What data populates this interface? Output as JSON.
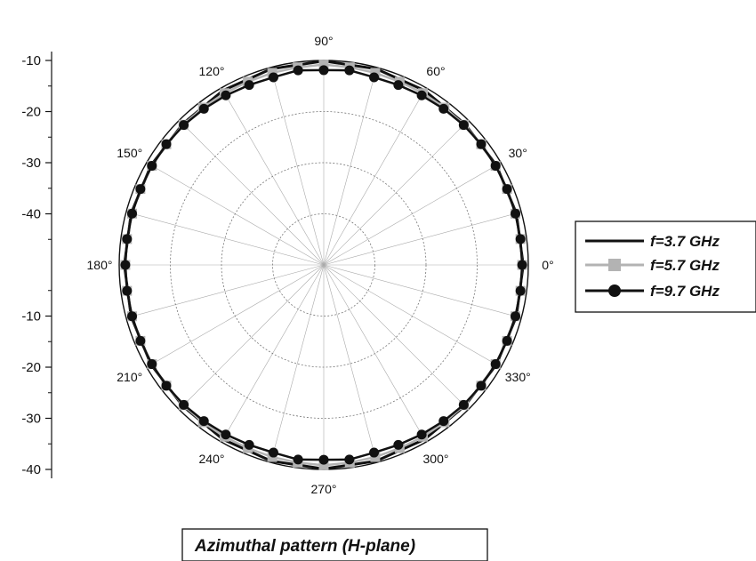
{
  "chart_data": {
    "type": "polar-line",
    "caption": "Azimuthal pattern (H-plane)",
    "radial_axis": {
      "tick_labels_upper": [
        "-10",
        "-20",
        "-30",
        "-40"
      ],
      "tick_labels_lower": [
        "-40",
        "-30",
        "-20",
        "-10"
      ],
      "range": [
        -50,
        -10
      ],
      "grid": "dotted rings"
    },
    "angular_axis": {
      "unit": "degrees",
      "tick_labels": [
        "0°",
        "30°",
        "60°",
        "90°",
        "120°",
        "150°",
        "180°",
        "210°",
        "240°",
        "270°",
        "300°",
        "330°"
      ],
      "spoke_step_deg": 15
    },
    "legend": {
      "placement": "right",
      "entries": [
        "f=3.7 GHz",
        "f=5.7 GHz",
        "f=9.7 GHz"
      ]
    },
    "series": [
      {
        "name": "f=3.7 GHz",
        "color": "#111111",
        "marker": "none",
        "theta_deg": [
          0,
          15,
          30,
          45,
          60,
          75,
          90,
          105,
          120,
          135,
          150,
          165,
          180,
          195,
          210,
          225,
          240,
          255,
          270,
          285,
          300,
          315,
          330,
          345
        ],
        "r": [
          -11,
          -11,
          -11,
          -11,
          -10.6,
          -10.3,
          -10.1,
          -10.3,
          -10.6,
          -11,
          -11,
          -11,
          -11,
          -11,
          -11,
          -11,
          -10.6,
          -10.3,
          -10.1,
          -10.3,
          -10.6,
          -11,
          -11,
          -11
        ]
      },
      {
        "name": "f=5.7 GHz",
        "color": "#b3b3b3",
        "marker": "square",
        "theta_deg": [
          0,
          7.5,
          15,
          22.5,
          30,
          37.5,
          45,
          52.5,
          60,
          67.5,
          75,
          82.5,
          90,
          97.5,
          105,
          112.5,
          120,
          127.5,
          135,
          142.5,
          150,
          157.5,
          165,
          172.5,
          180,
          187.5,
          195,
          202.5,
          210,
          217.5,
          225,
          232.5,
          240,
          247.5,
          255,
          262.5,
          270,
          277.5,
          285,
          292.5,
          300,
          307.5,
          315,
          322.5,
          330,
          337.5,
          345,
          352.5
        ],
        "r": [
          -11.2,
          -11.2,
          -11.2,
          -11.2,
          -11.2,
          -11.2,
          -11.2,
          -11.2,
          -11.2,
          -11.2,
          -11.1,
          -11,
          -10.8,
          -11,
          -11.1,
          -11.2,
          -11.2,
          -11.2,
          -11.2,
          -11.2,
          -11.2,
          -11.2,
          -11.2,
          -11.2,
          -11.2,
          -11.2,
          -11.2,
          -11.2,
          -11.2,
          -11.2,
          -11.2,
          -11.2,
          -11.2,
          -11.2,
          -11.1,
          -11,
          -10.8,
          -11,
          -11.1,
          -11.2,
          -11.2,
          -11.2,
          -11.2,
          -11.2,
          -11.2,
          -11.2,
          -11.2,
          -11.2
        ]
      },
      {
        "name": "f=9.7 GHz",
        "color": "#111111",
        "marker": "circle",
        "theta_deg": [
          0,
          7.5,
          15,
          22.5,
          30,
          37.5,
          45,
          52.5,
          60,
          67.5,
          75,
          82.5,
          90,
          97.5,
          105,
          112.5,
          120,
          127.5,
          135,
          142.5,
          150,
          157.5,
          165,
          172.5,
          180,
          187.5,
          195,
          202.5,
          210,
          217.5,
          225,
          232.5,
          240,
          247.5,
          255,
          262.5,
          270,
          277.5,
          285,
          292.5,
          300,
          307.5,
          315,
          322.5,
          330,
          337.5,
          345,
          352.5
        ],
        "r": [
          -11.2,
          -11.2,
          -11.2,
          -11.2,
          -11.2,
          -11.2,
          -11.3,
          -11.5,
          -11.7,
          -11.9,
          -12,
          -11.6,
          -11.9,
          -11.6,
          -12,
          -11.9,
          -11.7,
          -11.5,
          -11.3,
          -11.2,
          -11.2,
          -11.2,
          -11.2,
          -11.2,
          -11.2,
          -11.2,
          -11.2,
          -11.2,
          -11.2,
          -11.2,
          -11.3,
          -11.5,
          -11.7,
          -11.9,
          -12,
          -11.6,
          -11.9,
          -11.6,
          -12,
          -11.9,
          -11.7,
          -11.5,
          -11.3,
          -11.2,
          -11.2,
          -11.2,
          -11.2,
          -11.2
        ]
      }
    ]
  }
}
